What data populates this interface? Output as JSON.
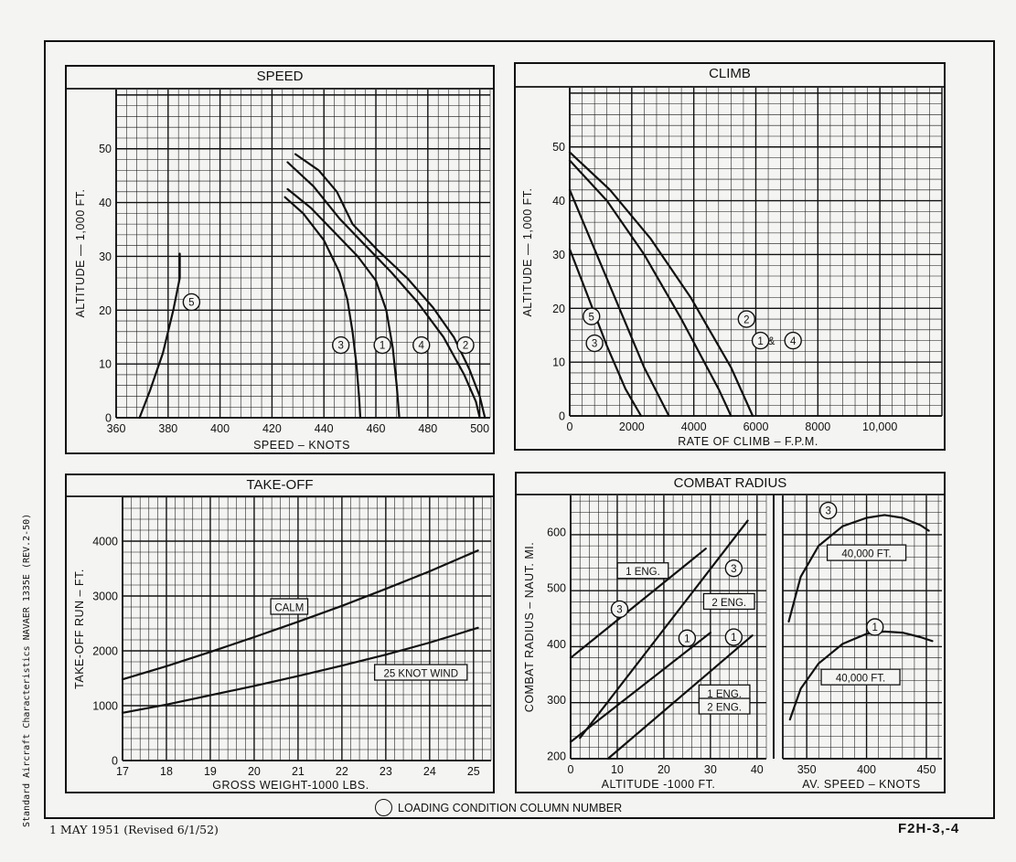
{
  "footer": {
    "date": "1 MAY 1951 (Revised 6/1/52)",
    "code": "F2H-3,-4",
    "side_note": "Standard Aircraft Characteristics NAVAER 1335E (REV.2-50)",
    "legend_note": "LOADING CONDITION COLUMN NUMBER"
  },
  "colors": {
    "ink": "#111111",
    "paper": "#f4f4f2"
  },
  "chart_data": [
    {
      "id": "speed",
      "type": "line",
      "title": "SPEED",
      "xlabel": "SPEED – KNOTS",
      "ylabel": "ALTITUDE — 1,000 FT.",
      "xlim": [
        360,
        504
      ],
      "ylim": [
        0,
        61
      ],
      "xticks": [
        360,
        380,
        400,
        420,
        440,
        460,
        480,
        500
      ],
      "yticks": [
        0,
        10,
        20,
        30,
        40,
        50
      ],
      "grid": true,
      "series": [
        {
          "name": "5",
          "x": [
            369,
            373,
            378,
            382,
            384.5,
            384.5
          ],
          "y": [
            0,
            5,
            12,
            20,
            26,
            30.5
          ]
        },
        {
          "name": "3",
          "x": [
            425,
            432,
            440,
            446,
            449,
            451,
            452.5,
            453.5,
            454
          ],
          "y": [
            41,
            38,
            33,
            27,
            22,
            16,
            10,
            4,
            0
          ]
        },
        {
          "name": "1",
          "x": [
            426,
            435,
            445,
            453,
            460,
            464,
            466.5,
            468,
            469
          ],
          "y": [
            42.5,
            39,
            34,
            30,
            25.5,
            20,
            13,
            6,
            0
          ]
        },
        {
          "name": "4",
          "x": [
            426,
            436,
            446,
            456,
            466,
            476,
            486,
            494,
            498.5,
            500
          ],
          "y": [
            47.5,
            43,
            37,
            32,
            27,
            21.5,
            15,
            8,
            3,
            0
          ]
        },
        {
          "name": "2",
          "x": [
            429,
            438,
            445,
            451,
            461,
            472,
            482,
            490,
            496,
            500,
            502
          ],
          "y": [
            49,
            46,
            42,
            36,
            31,
            26,
            20.5,
            15,
            9,
            4,
            0
          ]
        }
      ],
      "curve_labels": [
        {
          "text": "5",
          "x": 389,
          "y": 21.5
        },
        {
          "text": "3",
          "x": 446.5,
          "y": 13.5
        },
        {
          "text": "1",
          "x": 462.5,
          "y": 13.5
        },
        {
          "text": "4",
          "x": 477.5,
          "y": 13.5
        },
        {
          "text": "2",
          "x": 494.5,
          "y": 13.5
        }
      ]
    },
    {
      "id": "climb",
      "type": "line",
      "title": "CLIMB",
      "xlabel": "RATE OF CLIMB – F.P.M.",
      "ylabel": "ALTITUDE — 1,000 FT.",
      "xlim": [
        0,
        12000
      ],
      "ylim": [
        0,
        61
      ],
      "xticks": [
        0,
        2000,
        4000,
        6000,
        8000,
        10000
      ],
      "xtick_labels": [
        "0",
        "2000",
        "4000",
        "6000",
        "8000",
        "10,000"
      ],
      "yticks": [
        0,
        10,
        20,
        30,
        40,
        50
      ],
      "grid": true,
      "series": [
        {
          "name": "5",
          "x": [
            0,
            600,
            1200,
            1800,
            2300
          ],
          "y": [
            31,
            22,
            13,
            5,
            0
          ]
        },
        {
          "name": "3",
          "x": [
            0,
            800,
            1600,
            2400,
            3200
          ],
          "y": [
            42,
            31,
            20,
            9,
            0
          ]
        },
        {
          "name": "1 & 4",
          "x": [
            0,
            1200,
            2400,
            3600,
            4800,
            5200
          ],
          "y": [
            47.5,
            40,
            30,
            18,
            5,
            0
          ]
        },
        {
          "name": "2",
          "x": [
            0,
            1300,
            2600,
            3900,
            5200,
            5900
          ],
          "y": [
            49,
            42,
            33,
            22,
            9,
            0
          ]
        }
      ],
      "curve_labels": [
        {
          "text": "5",
          "x": 700,
          "y": 18.5
        },
        {
          "text": "3",
          "x": 800,
          "y": 13.5
        },
        {
          "text": "2",
          "x": 5700,
          "y": 18
        },
        {
          "text": "1",
          "x": 6150,
          "y": 14
        },
        {
          "text": "&",
          "x": 6500,
          "y": 14
        },
        {
          "text": "4",
          "x": 7200,
          "y": 14
        }
      ]
    },
    {
      "id": "takeoff",
      "type": "line",
      "title": "TAKE-OFF",
      "xlabel": "GROSS WEIGHT-1000 LBS.",
      "ylabel": "TAKE-OFF RUN – FT.",
      "xlim": [
        17,
        25.4
      ],
      "ylim": [
        0,
        4800
      ],
      "xticks": [
        17,
        18,
        19,
        20,
        21,
        22,
        23,
        24,
        25
      ],
      "yticks": [
        0,
        1000,
        2000,
        3000,
        4000
      ],
      "grid": true,
      "series": [
        {
          "name": "CALM",
          "x": [
            17,
            18,
            19,
            20,
            21,
            22,
            23,
            24,
            25.1
          ],
          "y": [
            1480,
            1720,
            1980,
            2250,
            2530,
            2820,
            3130,
            3450,
            3830
          ]
        },
        {
          "name": "25 KNOT WIND",
          "x": [
            17,
            18,
            19,
            20,
            21,
            22,
            23,
            24,
            25.1
          ],
          "y": [
            870,
            1020,
            1190,
            1360,
            1540,
            1730,
            1930,
            2150,
            2420
          ]
        }
      ],
      "curve_labels": [
        {
          "text": "CALM",
          "x": 20.8,
          "y": 2800
        },
        {
          "text": "25 KNOT WIND",
          "x": 23.8,
          "y": 1600
        }
      ]
    },
    {
      "id": "combat_radius_altitude",
      "type": "line",
      "title": "COMBAT RADIUS",
      "xlabel": "ALTITUDE -1000 FT.",
      "ylabel": "COMBAT RADIUS – NAUT. MI.",
      "xlim": [
        0,
        42
      ],
      "ylim": [
        195,
        665
      ],
      "xticks": [
        0,
        10,
        20,
        30,
        40
      ],
      "yticks": [
        200,
        300,
        400,
        500,
        600
      ],
      "grid": true,
      "series": [
        {
          "name": "3 – 1 ENG.",
          "x": [
            0,
            29
          ],
          "y": [
            375,
            570
          ]
        },
        {
          "name": "3 – 2 ENG.",
          "x": [
            2,
            38
          ],
          "y": [
            232,
            620
          ]
        },
        {
          "name": "1 – 1 ENG.",
          "x": [
            0,
            30
          ],
          "y": [
            225,
            420
          ]
        },
        {
          "name": "1 – 2 ENG.",
          "x": [
            8,
            39
          ],
          "y": [
            195,
            415
          ]
        }
      ],
      "curve_labels": [
        {
          "text": "1 ENG.",
          "x": 15.5,
          "y": 530
        },
        {
          "text": "3",
          "x": 10.5,
          "y": 462
        },
        {
          "text": "3",
          "x": 35,
          "y": 535
        },
        {
          "text": "2 ENG.",
          "x": 34,
          "y": 475
        },
        {
          "text": "1",
          "x": 25,
          "y": 410
        },
        {
          "text": "1",
          "x": 35,
          "y": 412
        },
        {
          "text": "1 ENG.",
          "x": 33,
          "y": 312
        },
        {
          "text": "2 ENG.",
          "x": 33,
          "y": 288
        }
      ]
    },
    {
      "id": "combat_radius_speed",
      "type": "line",
      "title": "",
      "xlabel": "AV. SPEED – KNOTS",
      "ylabel": "",
      "xlim": [
        330,
        463
      ],
      "ylim": [
        195,
        665
      ],
      "xticks": [
        350,
        400,
        450
      ],
      "yticks": [],
      "grid": true,
      "series": [
        {
          "name": "3 – 40,000 FT.",
          "x": [
            335,
            345,
            360,
            380,
            400,
            415,
            430,
            445,
            452
          ],
          "y": [
            440,
            520,
            575,
            610,
            625,
            630,
            625,
            612,
            602
          ]
        },
        {
          "name": "1 – 40,000 FT.",
          "x": [
            336,
            345,
            360,
            380,
            400,
            415,
            430,
            445,
            455
          ],
          "y": [
            265,
            320,
            365,
            400,
            418,
            422,
            420,
            412,
            405
          ]
        }
      ],
      "curve_labels": [
        {
          "text": "3",
          "x": 368,
          "y": 638
        },
        {
          "text": "40,000 FT.",
          "x": 400,
          "y": 562
        },
        {
          "text": "1",
          "x": 407,
          "y": 430
        },
        {
          "text": "40,000 FT.",
          "x": 395,
          "y": 340
        }
      ]
    }
  ]
}
